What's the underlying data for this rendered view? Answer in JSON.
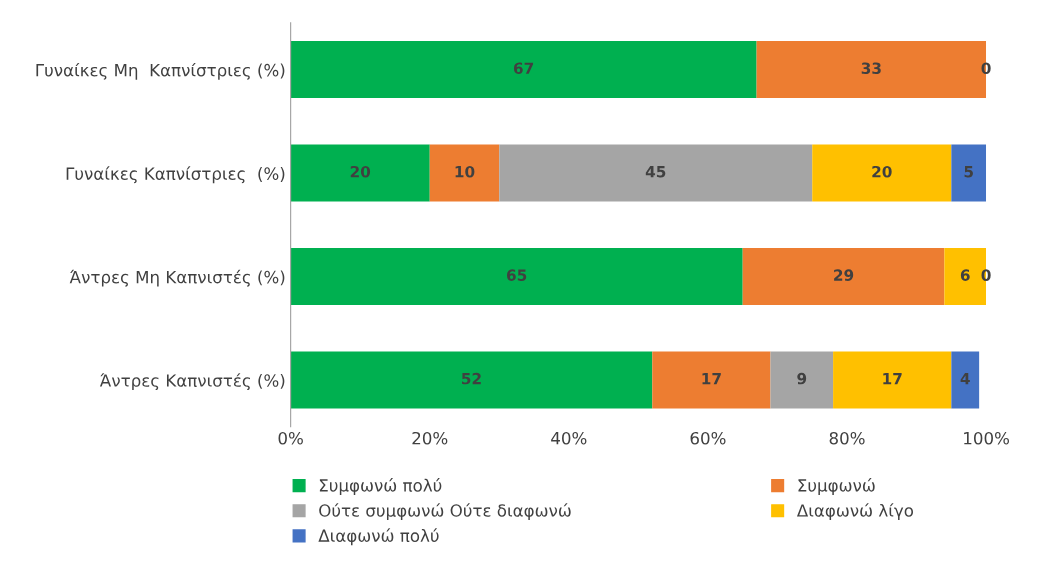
{
  "chart_data": {
    "type": "bar",
    "orientation": "horizontal",
    "stacked": true,
    "data_labels": true,
    "grid": false,
    "legend": "bottom",
    "categories": [
      "Γυναίκες Μη  Καπνίστριες (%)",
      "Γυναίκες Καπνίστριες  (%)",
      "Άντρες Μη Καπνιστές (%)",
      "Άντρες Καπνιστές (%)"
    ],
    "xlim": [
      0,
      100
    ],
    "xticks": [
      {
        "value": 0,
        "label": "0%"
      },
      {
        "value": 20,
        "label": "20%"
      },
      {
        "value": 40,
        "label": "40%"
      },
      {
        "value": 60,
        "label": "60%"
      },
      {
        "value": 80,
        "label": "80%"
      },
      {
        "value": 100,
        "label": "100%"
      }
    ],
    "series": [
      {
        "name": "Συμφωνώ πολύ",
        "color": "#00b050",
        "values": [
          67,
          20,
          65,
          52
        ]
      },
      {
        "name": "Συμφωνώ",
        "color": "#ed7d31",
        "values": [
          33,
          10,
          29,
          17
        ]
      },
      {
        "name": "Ούτε συμφωνώ Ούτε διαφωνώ",
        "color": "#a5a5a5",
        "values": [
          null,
          45,
          null,
          9
        ]
      },
      {
        "name": "Διαφωνώ λίγο",
        "color": "#ffc000",
        "values": [
          null,
          20,
          6,
          17
        ]
      },
      {
        "name": "Διαφωνώ πολύ",
        "color": "#4472c4",
        "values": [
          0,
          5,
          0,
          4
        ]
      }
    ]
  }
}
